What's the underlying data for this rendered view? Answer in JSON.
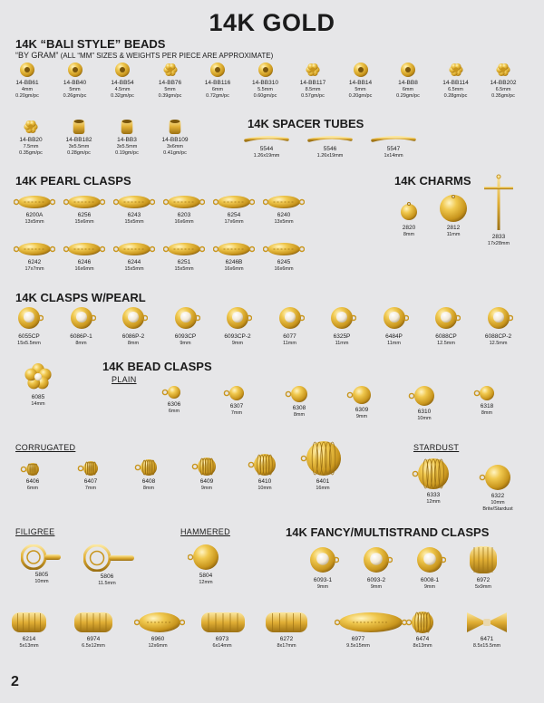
{
  "title": "14K GOLD",
  "page_number": "2",
  "colors": {
    "gold": "#e2b33a",
    "gold_light": "#f6dc88",
    "gold_dark": "#a87a14",
    "bg": "#e6e6e8"
  },
  "sections": {
    "bali_title": "14K “BALI STYLE” BEADS",
    "bali_sub_bold": "“BY GRAM”",
    "bali_sub_note": " (ALL “MM” SIZES & WEIGHTS PER PIECE ARE APPROXIMATE)",
    "spacer_title": "14K SPACER TUBES",
    "pearl_title": "14K PEARL CLASPS",
    "charms_title": "14K CHARMS",
    "wpearl_title": "14K CLASPS W/PEARL",
    "bead_title": "14K BEAD CLASPS",
    "plain": "PLAIN",
    "corrugated": "CORRUGATED",
    "stardust": "STARDUST",
    "filigree": "FILIGREE",
    "hammered": "HAMMERED",
    "fancy_title": "14K FANCY/MULTISTRAND CLASPS"
  },
  "bali_row1": [
    {
      "code": "14-BB61",
      "size": "4mm",
      "weight": "0.20gm/pc"
    },
    {
      "code": "14-BB40",
      "size": "5mm",
      "weight": "0.26gm/pc"
    },
    {
      "code": "14-BB54",
      "size": "4.5mm",
      "weight": "0.32gm/pc"
    },
    {
      "code": "14-BB76",
      "size": "5mm",
      "weight": "0.39gm/pc"
    },
    {
      "code": "14-BB116",
      "size": "6mm",
      "weight": "0.72gm/pc"
    },
    {
      "code": "14-BB310",
      "size": "5.5mm",
      "weight": "0.60gm/pc"
    },
    {
      "code": "14-BB117",
      "size": "8.5mm",
      "weight": "0.57gm/pc"
    },
    {
      "code": "14-BB14",
      "size": "5mm",
      "weight": "0.20gm/pc"
    },
    {
      "code": "14-BB8",
      "size": "6mm",
      "weight": "0.29gm/pc"
    },
    {
      "code": "14-BB114",
      "size": "6.5mm",
      "weight": "0.28gm/pc"
    },
    {
      "code": "14-BB202",
      "size": "6.5mm",
      "weight": "0.35gm/pc"
    }
  ],
  "bali_row2": [
    {
      "code": "14-BB20",
      "size": "7.5mm",
      "weight": "0.35gm/pc"
    },
    {
      "code": "14-BB182",
      "size": "3x5.5mm",
      "weight": "0.28gm/pc"
    },
    {
      "code": "14-BB3",
      "size": "3x5.5mm",
      "weight": "0.19gm/pc"
    },
    {
      "code": "14-BB109",
      "size": "3x6mm",
      "weight": "0.41gm/pc"
    }
  ],
  "spacers": [
    {
      "code": "5544",
      "size": "1.26x19mm"
    },
    {
      "code": "5546",
      "size": "1.26x19mm"
    },
    {
      "code": "5547",
      "size": "1x14mm"
    }
  ],
  "pearl_row1": [
    {
      "code": "6200A",
      "size": "13x5mm"
    },
    {
      "code": "6256",
      "size": "15x6mm"
    },
    {
      "code": "6243",
      "size": "15x5mm"
    },
    {
      "code": "6203",
      "size": "16x6mm"
    },
    {
      "code": "6254",
      "size": "17x6mm"
    },
    {
      "code": "6240",
      "size": "13x5mm"
    }
  ],
  "pearl_row2": [
    {
      "code": "6242",
      "size": "17x7mm"
    },
    {
      "code": "6246",
      "size": "16x6mm"
    },
    {
      "code": "6244",
      "size": "15x5mm"
    },
    {
      "code": "6251",
      "size": "15x5mm"
    },
    {
      "code": "6246B",
      "size": "16x6mm"
    },
    {
      "code": "6245",
      "size": "16x6mm"
    }
  ],
  "charms": [
    {
      "code": "2820",
      "size": "8mm"
    },
    {
      "code": "2812",
      "size": "11mm"
    },
    {
      "code": "2833",
      "size": "17x28mm"
    }
  ],
  "wpearl": [
    {
      "code": "6055CP",
      "size": "15x5.5mm"
    },
    {
      "code": "6086P-1",
      "size": "8mm"
    },
    {
      "code": "6086P-2",
      "size": "8mm"
    },
    {
      "code": "6093CP",
      "size": "9mm"
    },
    {
      "code": "6093CP-2",
      "size": "9mm"
    },
    {
      "code": "6077",
      "size": "11mm"
    },
    {
      "code": "6325P",
      "size": "11mm"
    },
    {
      "code": "6484P",
      "size": "11mm"
    },
    {
      "code": "6088CP",
      "size": "12.5mm"
    },
    {
      "code": "6088CP-2",
      "size": "12.5mm"
    }
  ],
  "flower": {
    "code": "6085",
    "size": "14mm"
  },
  "plain": [
    {
      "code": "6306",
      "size": "6mm"
    },
    {
      "code": "6307",
      "size": "7mm"
    },
    {
      "code": "6308",
      "size": "8mm"
    },
    {
      "code": "6309",
      "size": "9mm"
    },
    {
      "code": "6310",
      "size": "10mm"
    },
    {
      "code": "6318",
      "size": "8mm"
    }
  ],
  "corrugated": [
    {
      "code": "6406",
      "size": "6mm"
    },
    {
      "code": "6407",
      "size": "7mm"
    },
    {
      "code": "6408",
      "size": "8mm"
    },
    {
      "code": "6409",
      "size": "9mm"
    },
    {
      "code": "6410",
      "size": "10mm"
    },
    {
      "code": "6401",
      "size": "16mm"
    }
  ],
  "stardust": [
    {
      "code": "6333",
      "size": "12mm"
    },
    {
      "code": "6322",
      "size": "10mm",
      "extra": "Brite/Stardust"
    }
  ],
  "filigree": [
    {
      "code": "5805",
      "size": "10mm"
    },
    {
      "code": "5806",
      "size": "11.5mm"
    }
  ],
  "hammered": [
    {
      "code": "5804",
      "size": "12mm"
    }
  ],
  "fancy_row1": [
    {
      "code": "6093-1",
      "size": "9mm"
    },
    {
      "code": "6093-2",
      "size": "9mm"
    },
    {
      "code": "6008-1",
      "size": "9mm"
    },
    {
      "code": "6972",
      "size": "5x9mm"
    }
  ],
  "bottom_row": [
    {
      "code": "6214",
      "size": "5x13mm"
    },
    {
      "code": "6974",
      "size": "6.5x12mm"
    },
    {
      "code": "6960",
      "size": "12x6mm"
    },
    {
      "code": "6973",
      "size": "6x14mm"
    },
    {
      "code": "6272",
      "size": "8x17mm"
    },
    {
      "code": "6977",
      "size": "9.5x15mm"
    },
    {
      "code": "6474",
      "size": "8x13mm"
    },
    {
      "code": "6471",
      "size": "8.5x15.5mm"
    }
  ]
}
